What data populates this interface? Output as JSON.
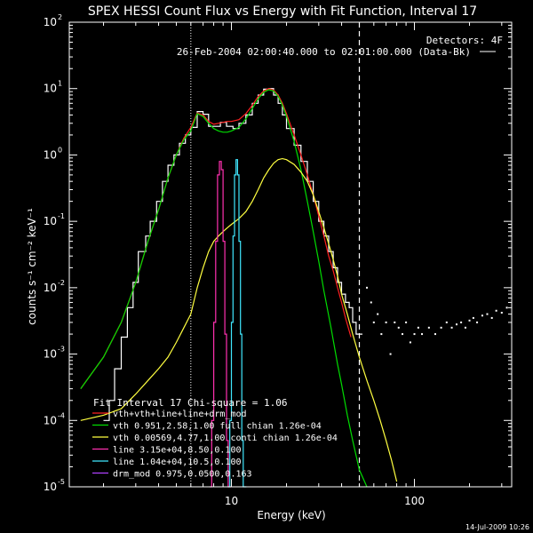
{
  "chart_data": {
    "type": "line",
    "title": "SPEX HESSI Count Flux vs Energy with Fit Function, Interval 17",
    "xlabel": "Energy (keV)",
    "ylabel": "counts s⁻¹ cm⁻² keV⁻¹",
    "x_scale": "log",
    "y_scale": "log",
    "xlim": [
      1.3,
      340
    ],
    "ylim": [
      1e-05,
      100
    ],
    "x_ticks": [
      {
        "v": 10,
        "label": "10"
      },
      {
        "v": 100,
        "label": "100"
      }
    ],
    "y_ticks": [
      {
        "v": 1e-05,
        "base": "10",
        "exp": "-5"
      },
      {
        "v": 0.0001,
        "base": "10",
        "exp": "-4"
      },
      {
        "v": 0.001,
        "base": "10",
        "exp": "-3"
      },
      {
        "v": 0.01,
        "base": "10",
        "exp": "-2"
      },
      {
        "v": 0.1,
        "base": "10",
        "exp": "-1"
      },
      {
        "v": 1,
        "base": "10",
        "exp": "0"
      },
      {
        "v": 10,
        "base": "10",
        "exp": "1"
      },
      {
        "v": 100,
        "base": "10",
        "exp": "2"
      }
    ],
    "detectors_text": "Detectors: 4F",
    "time_text": "26-Feb-2004 02:00:40.000 to 02:01:00.000 (Data-Bk)",
    "fit_header": "Fit Interval 17   Chi-square = 1.06",
    "date_stamp": "14-Jul-2009 10:26",
    "fit_interval_x": [
      6.0,
      50.0
    ],
    "legend": [
      {
        "text": "vth+vth+line+line+drm_mod",
        "color": "#ff2020"
      },
      {
        "text": "vth  0.951,2.58,1.00   full chian 1.26e-04",
        "color": "#00dd00"
      },
      {
        "text": "vth  0.00569,4.77,1.00   conti chian 1.26e-04",
        "color": "#ffff40"
      },
      {
        "text": "line  3.15e+04,8.50,0.100",
        "color": "#ff30b0"
      },
      {
        "text": "line  1.04e+04,10.5,0.100",
        "color": "#40e8ff"
      },
      {
        "text": "drm_mod  0.975,0.0500,0.163",
        "color": "#b040ff"
      }
    ],
    "series": [
      {
        "name": "Data-Bk",
        "color": "#ffffff",
        "style": "step",
        "x": [
          2.0,
          2.15,
          2.3,
          2.5,
          2.7,
          2.9,
          3.1,
          3.4,
          3.6,
          3.9,
          4.2,
          4.5,
          4.85,
          5.2,
          5.6,
          6.0,
          6.5,
          7.0,
          7.5,
          8.0,
          8.7,
          9.4,
          10.2,
          11.0,
          12.0,
          13.0,
          14.0,
          15.0,
          16.0,
          17.0,
          18.0,
          19.0,
          20.0,
          22.0,
          24.0,
          26.0,
          28.0,
          30.0,
          32.0,
          34.0,
          36.0,
          38.0,
          40.0,
          42.0,
          44.0,
          46.0,
          48.0,
          50.0
        ],
        "y": [
          0.0001,
          0.0002,
          0.0006,
          0.0018,
          0.005,
          0.012,
          0.035,
          0.06,
          0.1,
          0.2,
          0.4,
          0.7,
          1.0,
          1.5,
          2.0,
          2.6,
          4.5,
          4.1,
          2.7,
          2.7,
          3.1,
          2.7,
          2.5,
          3.0,
          4.0,
          6.0,
          8.0,
          9.8,
          10.0,
          8.0,
          6.0,
          4.0,
          2.5,
          1.4,
          0.8,
          0.4,
          0.2,
          0.1,
          0.06,
          0.035,
          0.02,
          0.012,
          0.008,
          0.006,
          0.005,
          0.003,
          0.002,
          0.002
        ]
      },
      {
        "name": "vth+vth+line+line+drm_mod",
        "color": "#ff2020",
        "style": "line",
        "x": [
          1.5,
          2.0,
          2.5,
          3.0,
          3.5,
          4.0,
          4.5,
          5.0,
          5.5,
          6.0,
          6.5,
          7.0,
          7.5,
          8.0,
          8.5,
          9.0,
          9.5,
          10.0,
          11.0,
          12.0,
          13.0,
          14.0,
          15.0,
          16.0,
          17.0,
          18.0,
          19.0,
          20.0,
          22.0,
          24.0,
          26.0,
          28.0,
          30.0,
          32.0,
          34.0,
          36.0,
          38.0,
          40.0,
          42.0,
          45.0
        ],
        "y": [
          0.0003,
          0.0009,
          0.003,
          0.012,
          0.05,
          0.15,
          0.45,
          1.0,
          1.8,
          2.6,
          4.3,
          4.0,
          3.2,
          2.9,
          3.0,
          3.1,
          3.2,
          3.2,
          3.4,
          4.2,
          5.6,
          7.6,
          9.2,
          10.0,
          9.5,
          8.0,
          6.0,
          4.2,
          2.0,
          1.0,
          0.5,
          0.25,
          0.12,
          0.06,
          0.03,
          0.018,
          0.01,
          0.006,
          0.0035,
          0.0018
        ]
      },
      {
        "name": "vth (full)",
        "color": "#00dd00",
        "style": "line",
        "x": [
          1.5,
          2.0,
          2.5,
          3.0,
          3.5,
          4.0,
          4.5,
          5.0,
          5.5,
          6.0,
          6.5,
          7.0,
          7.5,
          8.0,
          8.5,
          9.0,
          9.5,
          10.0,
          11.0,
          12.0,
          13.0,
          14.0,
          15.0,
          16.0,
          17.0,
          18.0,
          19.0,
          20.0,
          22.0,
          24.0,
          26.0,
          28.0,
          30.0,
          32.0,
          35.0,
          38.0,
          40.0,
          43.0,
          46.0,
          50.0,
          55.0
        ],
        "y": [
          0.0003,
          0.0009,
          0.003,
          0.012,
          0.05,
          0.15,
          0.45,
          1.0,
          1.7,
          2.3,
          4.2,
          3.8,
          3.0,
          2.5,
          2.3,
          2.2,
          2.2,
          2.3,
          2.6,
          3.5,
          5.0,
          7.0,
          8.8,
          9.6,
          9.2,
          7.6,
          5.6,
          3.8,
          1.6,
          0.6,
          0.2,
          0.07,
          0.025,
          0.009,
          0.0025,
          0.0007,
          0.00035,
          0.00012,
          5e-05,
          1.8e-05,
          8e-06
        ]
      },
      {
        "name": "vth (conti)",
        "color": "#ffff40",
        "style": "line",
        "x": [
          1.5,
          2.0,
          2.5,
          3.0,
          3.5,
          4.0,
          4.5,
          5.0,
          5.5,
          6.0,
          6.5,
          7.0,
          7.5,
          8.0,
          8.5,
          9.0,
          9.5,
          10.0,
          11.0,
          12.0,
          13.0,
          14.0,
          15.0,
          16.0,
          17.0,
          18.0,
          19.0,
          20.0,
          22.0,
          24.0,
          26.0,
          28.0,
          30.0,
          32.0,
          35.0,
          38.0,
          40.0,
          43.0,
          46.0,
          50.0,
          55.0,
          60.0,
          65.0,
          70.0,
          75.0,
          80.0
        ],
        "y": [
          0.0001,
          0.00012,
          0.00015,
          0.00025,
          0.0004,
          0.0006,
          0.0009,
          0.0015,
          0.0025,
          0.004,
          0.01,
          0.02,
          0.035,
          0.05,
          0.06,
          0.07,
          0.08,
          0.09,
          0.11,
          0.14,
          0.2,
          0.3,
          0.45,
          0.6,
          0.75,
          0.85,
          0.88,
          0.85,
          0.72,
          0.55,
          0.4,
          0.25,
          0.14,
          0.08,
          0.035,
          0.015,
          0.008,
          0.004,
          0.002,
          0.0009,
          0.0004,
          0.0002,
          0.0001,
          5e-05,
          2.5e-05,
          1.2e-05
        ]
      },
      {
        "name": "line 8.50",
        "color": "#ff30b0",
        "style": "step",
        "x": [
          7.6,
          7.8,
          8.0,
          8.2,
          8.4,
          8.6,
          8.8,
          9.0,
          9.2,
          9.4,
          9.6
        ],
        "y": [
          1e-05,
          0.0001,
          0.003,
          0.05,
          0.5,
          0.8,
          0.6,
          0.05,
          0.002,
          5e-05,
          1e-05
        ]
      },
      {
        "name": "line 10.5",
        "color": "#40e8ff",
        "style": "step",
        "x": [
          9.6,
          9.8,
          10.0,
          10.2,
          10.4,
          10.6,
          10.8,
          11.0,
          11.2,
          11.4,
          11.6
        ],
        "y": [
          1e-05,
          0.0001,
          0.003,
          0.06,
          0.5,
          0.85,
          0.5,
          0.05,
          0.002,
          5e-05,
          1e-05
        ]
      },
      {
        "name": "scatter",
        "color": "#ffffff",
        "style": "points",
        "x": [
          55,
          58,
          60,
          63,
          66,
          70,
          74,
          78,
          82,
          86,
          90,
          95,
          100,
          105,
          110,
          120,
          130,
          140,
          150,
          160,
          170,
          180,
          190,
          200,
          210,
          220,
          235,
          250,
          265,
          280,
          300,
          320
        ],
        "y": [
          0.01,
          0.006,
          0.003,
          0.004,
          0.002,
          0.003,
          0.001,
          0.003,
          0.0025,
          0.002,
          0.003,
          0.0015,
          0.002,
          0.0025,
          0.002,
          0.0025,
          0.002,
          0.0025,
          0.003,
          0.0025,
          0.0028,
          0.003,
          0.0025,
          0.0032,
          0.0035,
          0.003,
          0.0038,
          0.004,
          0.0035,
          0.0045,
          0.0042,
          0.005
        ]
      }
    ]
  }
}
